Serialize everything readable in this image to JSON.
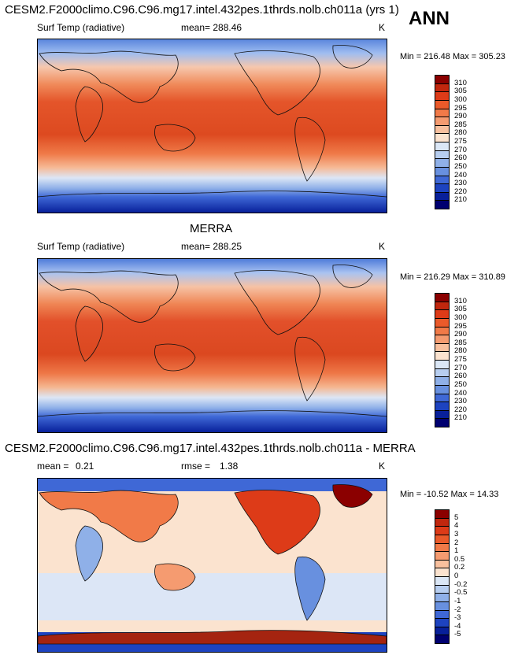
{
  "season": "ANN",
  "panels": [
    {
      "title": "CESM2.F2000climo.C96.C96.mg17.intel.432pes.1thrds.nolb.ch011a (yrs 1)",
      "variable": "Surf Temp (radiative)",
      "mean_text": "mean= 288.46",
      "units": "K",
      "minmax": "Min = 216.48 Max = 305.23",
      "field_kind": "temperature",
      "colorbar": {
        "labels": [
          "310",
          "305",
          "300",
          "295",
          "290",
          "285",
          "280",
          "275",
          "270",
          "260",
          "250",
          "240",
          "230",
          "220",
          "210"
        ],
        "colors": [
          "#8b0000",
          "#c1270e",
          "#dd3b18",
          "#ea5a2a",
          "#f17a48",
          "#f59b70",
          "#f8c09e",
          "#fbe3cf",
          "#dbe7f6",
          "#b7cef0",
          "#8fb0e8",
          "#6890df",
          "#3f68d6",
          "#1d43c0",
          "#08209a",
          "#000070"
        ]
      }
    },
    {
      "title": "MERRA",
      "variable": "Surf Temp (radiative)",
      "mean_text": "mean= 288.25",
      "units": "K",
      "minmax": "Min = 216.29 Max = 310.89",
      "field_kind": "temperature",
      "colorbar": {
        "labels": [
          "310",
          "305",
          "300",
          "295",
          "290",
          "285",
          "280",
          "275",
          "270",
          "260",
          "250",
          "240",
          "230",
          "220",
          "210"
        ],
        "colors": [
          "#8b0000",
          "#c1270e",
          "#dd3b18",
          "#ea5a2a",
          "#f17a48",
          "#f59b70",
          "#f8c09e",
          "#fbe3cf",
          "#dbe7f6",
          "#b7cef0",
          "#8fb0e8",
          "#6890df",
          "#3f68d6",
          "#1d43c0",
          "#08209a",
          "#000070"
        ]
      }
    },
    {
      "title": "CESM2.F2000climo.C96.C96.mg17.intel.432pes.1thrds.nolb.ch011a - MERRA",
      "mean_label": "mean =",
      "mean_value": "0.21",
      "rmse_label": "rmse =",
      "rmse_value": "1.38",
      "units": "K",
      "minmax": "Min = -10.52 Max =  14.33",
      "field_kind": "difference",
      "colorbar": {
        "labels": [
          "5",
          "4",
          "3",
          "2",
          "1",
          "0.5",
          "0.2",
          "0",
          "-0.2",
          "-0.5",
          "-1",
          "-2",
          "-3",
          "-4",
          "-5"
        ],
        "colors": [
          "#8b0000",
          "#c1270e",
          "#dd3b18",
          "#ea5a2a",
          "#f17a48",
          "#f59b70",
          "#f8c09e",
          "#fbe3cf",
          "#dbe7f6",
          "#b7cef0",
          "#8fb0e8",
          "#6890df",
          "#3f68d6",
          "#1d43c0",
          "#08209a",
          "#000070"
        ]
      }
    }
  ]
}
